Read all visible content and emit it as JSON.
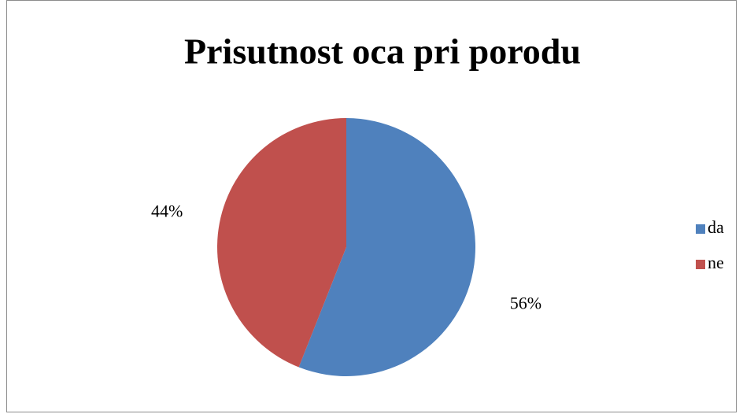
{
  "chart_data": {
    "type": "pie",
    "title": "Prisutnost oca pri porodu",
    "categories": [
      "da",
      "ne"
    ],
    "values": [
      56,
      44
    ],
    "value_labels": [
      "56%",
      "44%"
    ],
    "colors": [
      "#4f81bd",
      "#c0504d"
    ],
    "legend": "right"
  }
}
